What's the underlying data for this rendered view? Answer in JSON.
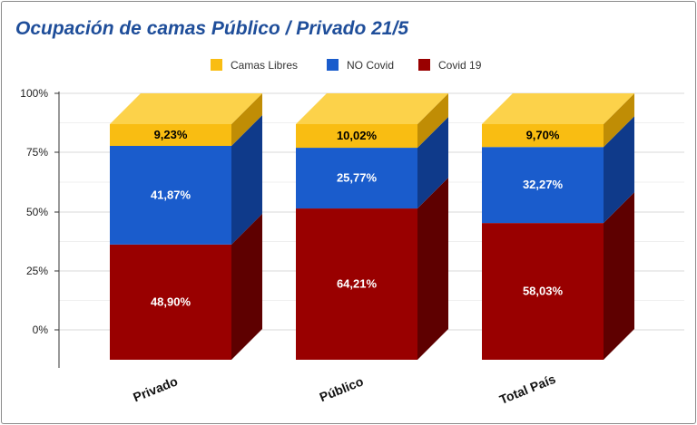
{
  "chart_data": {
    "type": "bar",
    "stacked": true,
    "style": "3d",
    "title": "Ocupación de camas Público / Privado 21/5",
    "categories": [
      "Privado",
      "Público",
      "Total País"
    ],
    "series": [
      {
        "name": "Covid 19",
        "color": "#990000",
        "side_color": "#5e0000",
        "values": [
          48.9,
          64.21,
          58.03
        ],
        "labels": [
          "48,90%",
          "64,21%",
          "58,03%"
        ],
        "label_color": "#ffffff"
      },
      {
        "name": "NO Covid",
        "color": "#1a5ccc",
        "side_color": "#0f3a8a",
        "values": [
          41.87,
          25.77,
          32.27
        ],
        "labels": [
          "41,87%",
          "25,77%",
          "32,27%"
        ],
        "label_color": "#ffffff"
      },
      {
        "name": "Camas Libres",
        "color": "#f9bd12",
        "side_color": "#c08d05",
        "values": [
          9.23,
          10.02,
          9.7
        ],
        "labels": [
          "9,23%",
          "10,02%",
          "9,70%"
        ],
        "label_color": "#000000"
      }
    ],
    "legend": {
      "position": "top",
      "order": [
        "Camas Libres",
        "NO Covid",
        "Covid 19"
      ]
    },
    "yticks": [
      "0%",
      "25%",
      "50%",
      "75%",
      "100%"
    ],
    "ylim": [
      0,
      100
    ],
    "grid": true
  }
}
